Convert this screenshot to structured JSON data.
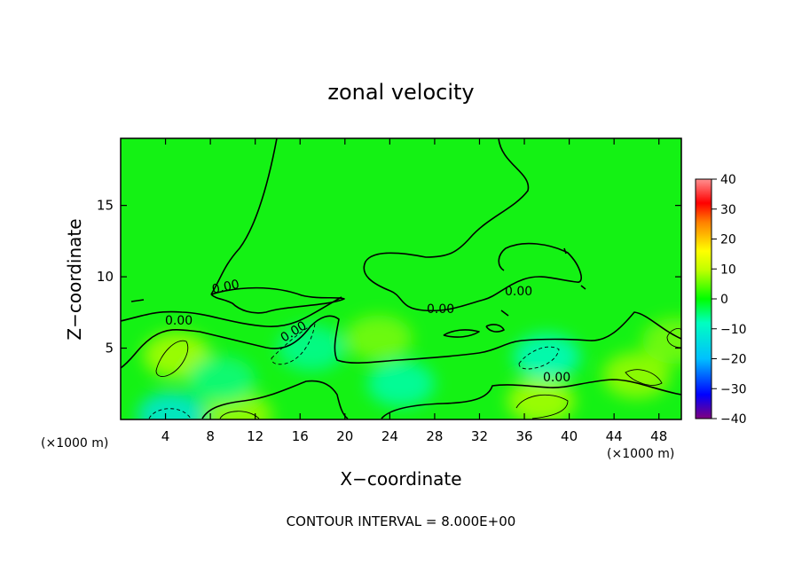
{
  "chart_data": {
    "type": "heatmap",
    "title": "zonal velocity",
    "xlabel": "X−coordinate",
    "ylabel": "Z−coordinate",
    "x_unit_left": "(×1000 m)",
    "x_unit_right": "(×1000 m)",
    "footer": "CONTOUR INTERVAL = 8.000E+00",
    "xlim": [
      0,
      50
    ],
    "ylim": [
      0,
      19.7
    ],
    "x_ticks": [
      "4",
      "8",
      "12",
      "16",
      "20",
      "24",
      "28",
      "32",
      "36",
      "40",
      "44",
      "48"
    ],
    "y_ticks": [
      "5",
      "10",
      "15"
    ],
    "colorbar": {
      "range": [
        -40,
        40
      ],
      "ticks": [
        "40",
        "30",
        "20",
        "10",
        "0",
        "−10",
        "−20",
        "−30",
        "−40"
      ],
      "colors": [
        "#7f007f",
        "#0000ff",
        "#00c0ff",
        "#00ffc0",
        "#00ff00",
        "#c0ff00",
        "#ffff00",
        "#ff8000",
        "#ff0000",
        "#ff9090"
      ]
    },
    "contour_interval": 8.0,
    "contour_labels": [
      "0.00",
      "0.00",
      "0.00",
      "0.00",
      "0.00",
      "0.00"
    ],
    "field_blobs": [
      {
        "x": 5,
        "z": 4.5,
        "value": 9
      },
      {
        "x": 10.5,
        "z": 0.3,
        "value": 8
      },
      {
        "x": 17,
        "z": 5,
        "value": -6
      },
      {
        "x": 23,
        "z": 5.7,
        "value": 6
      },
      {
        "x": 37.5,
        "z": 1.3,
        "value": 9
      },
      {
        "x": 38,
        "z": 4.4,
        "value": -9
      },
      {
        "x": 46,
        "z": 3.1,
        "value": 8
      },
      {
        "x": 49.5,
        "z": 5.5,
        "value": 6
      },
      {
        "x": 4.5,
        "z": 0.3,
        "value": -13
      },
      {
        "x": 25,
        "z": 2.5,
        "value": -7
      },
      {
        "x": 9,
        "z": 2.8,
        "value": -5
      }
    ]
  }
}
